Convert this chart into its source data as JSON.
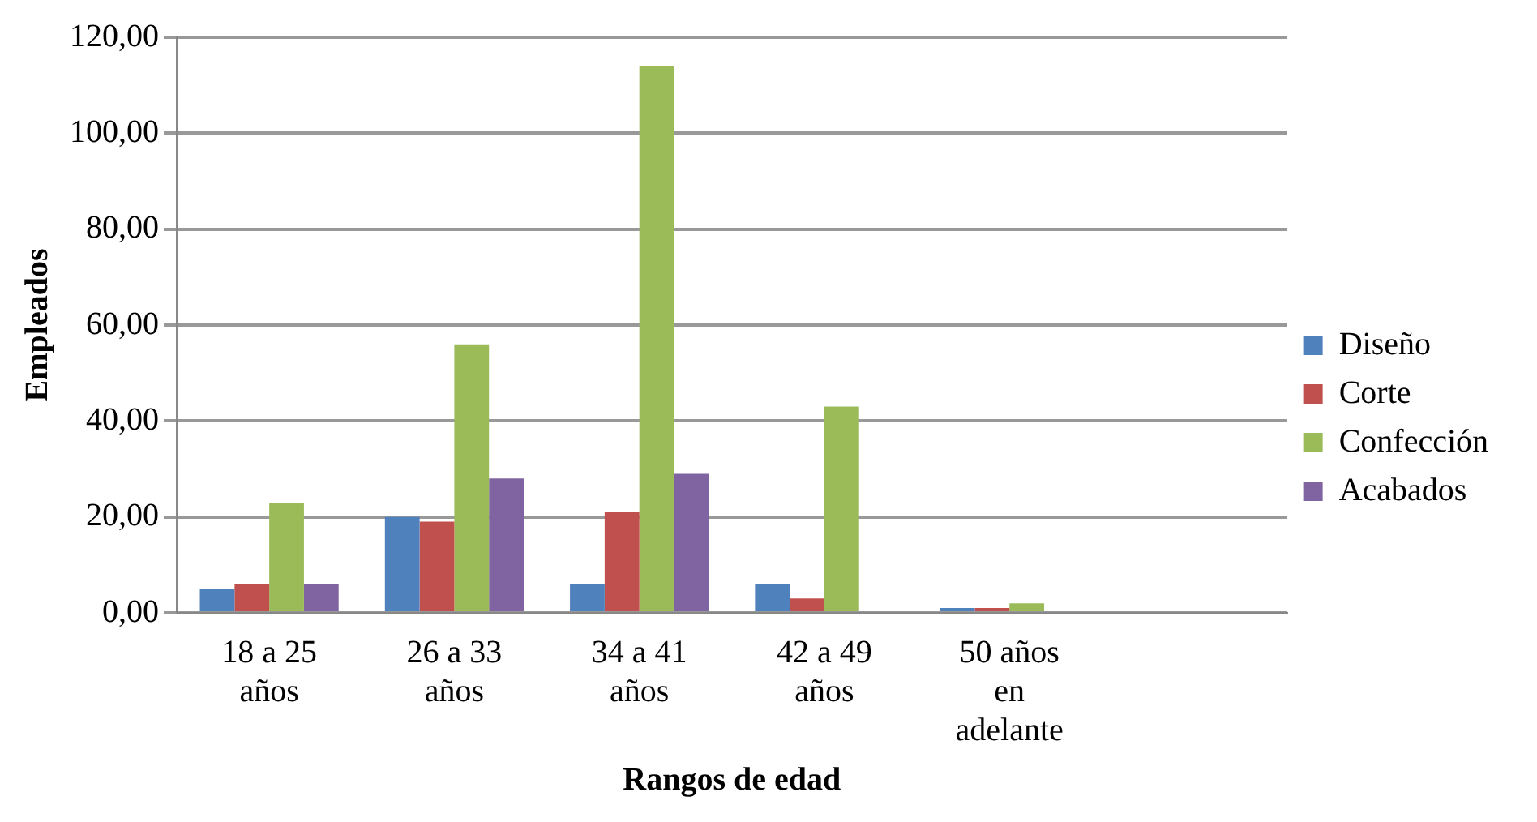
{
  "chart_data": {
    "type": "bar",
    "xlabel": "Rangos de edad",
    "ylabel": "Empleados",
    "categories": [
      "18 a 25 años",
      "26 a 33 años",
      "34 a 41 años",
      "42 a 49 años",
      "50 años en adelante",
      null
    ],
    "series": [
      {
        "name": "Diseño",
        "color": "#4f81bd",
        "values": [
          5,
          20,
          6,
          6,
          1,
          null
        ]
      },
      {
        "name": "Corte",
        "color": "#c0504d",
        "values": [
          6,
          19,
          21,
          3,
          1,
          null
        ]
      },
      {
        "name": "Confección",
        "color": "#9bbb59",
        "values": [
          23,
          56,
          114,
          43,
          2,
          null
        ]
      },
      {
        "name": "Acabados",
        "color": "#8064a2",
        "values": [
          6,
          28,
          29,
          0,
          0,
          null
        ]
      }
    ],
    "ylim": [
      0,
      120
    ],
    "yticks": [
      {
        "value": 0,
        "label": "0,00"
      },
      {
        "value": 20,
        "label": "20,00"
      },
      {
        "value": 40,
        "label": "40,00"
      },
      {
        "value": 60,
        "label": "60,00"
      },
      {
        "value": 80,
        "label": "80,00"
      },
      {
        "value": 100,
        "label": "100,00"
      },
      {
        "value": 120,
        "label": "120,00"
      }
    ],
    "grid": "y",
    "legend": "right"
  }
}
